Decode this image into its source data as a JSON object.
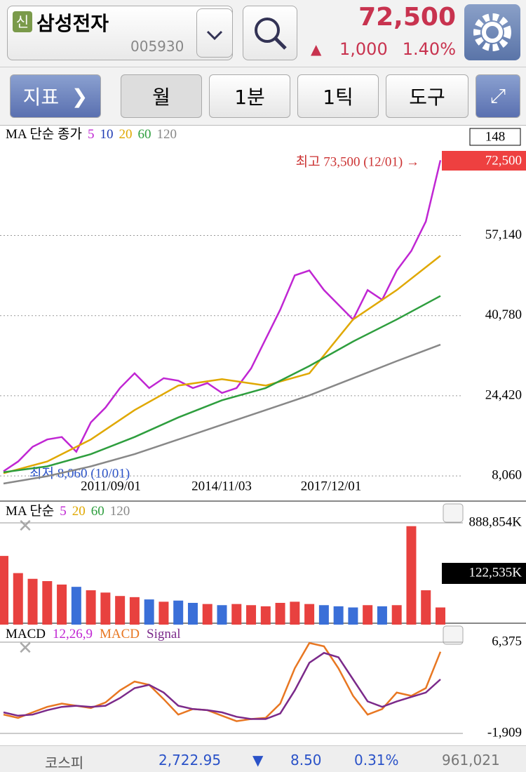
{
  "header": {
    "badge": "신",
    "name": "삼성전자",
    "code": "005930",
    "price": "72,500",
    "change_arrow": "▲",
    "change": "1,000",
    "change_pct": "1.40%"
  },
  "toolbar": {
    "indicator": "지표",
    "period": "월",
    "minute": "1분",
    "tick": "1틱",
    "tools": "도구"
  },
  "chart_data": [
    {
      "type": "line",
      "legend_title": "MA 단순 종가",
      "legend_periods": [
        "5",
        "10",
        "20",
        "60",
        "120"
      ],
      "legend_colors": [
        "#c026d3",
        "#1f3bb3",
        "#e0a800",
        "#2e9e3e",
        "#888888"
      ],
      "date_labels": [
        "2011/09/01",
        "2014/11/03",
        "2017/12/01"
      ],
      "top_label": "148",
      "current_price": "72,500",
      "high_label": "최고 73,500 (12/01) →",
      "low_label": "최저 8,060 (10/01)",
      "ylim": [
        4060,
        79140
      ],
      "yticks": [
        {
          "value": 8060,
          "label": "8,060"
        },
        {
          "value": 24420,
          "label": "24,420"
        },
        {
          "value": 40780,
          "label": "40,780"
        },
        {
          "value": 57140,
          "label": "57,140"
        }
      ],
      "grid": true,
      "series": [
        {
          "color": "#c026d3",
          "values": [
            9000,
            11000,
            14000,
            15500,
            16000,
            13000,
            19000,
            22000,
            26000,
            29000,
            26000,
            28000,
            27500,
            26000,
            27000,
            25000,
            26000,
            30000,
            36000,
            42000,
            49000,
            50000,
            46000,
            43000,
            40000,
            46000,
            44000,
            50000,
            54000,
            60000,
            72500
          ]
        },
        {
          "color": "#e0a800",
          "values": [
            8600,
            11000,
            15500,
            21500,
            26500,
            27800,
            26500,
            29000,
            40000,
            46000,
            53000
          ]
        },
        {
          "color": "#2e9e3e",
          "values": [
            8800,
            10000,
            12500,
            16000,
            20000,
            23500,
            26000,
            30500,
            35500,
            40000,
            44800
          ]
        },
        {
          "color": "#888888",
          "values": [
            6500,
            8000,
            10000,
            12500,
            15500,
            18500,
            21500,
            24500,
            28000,
            31500,
            34850
          ]
        }
      ]
    },
    {
      "type": "bar",
      "legend_title": "MA 단순",
      "legend_periods": [
        "5",
        "20",
        "60",
        "120"
      ],
      "legend_colors": [
        "#c026d3",
        "#e0a800",
        "#2e9e3e",
        "#888888"
      ],
      "current_label": "122,535K",
      "up_color": "#e8413f",
      "down_color": "#3a6fd8",
      "ylim": [
        0,
        1054364
      ],
      "yticks": [
        {
          "value": 888854,
          "label": "888,854K"
        }
      ],
      "values": [
        600000,
        450000,
        400000,
        380000,
        350000,
        330000,
        300000,
        280000,
        250000,
        240000,
        220000,
        200000,
        210000,
        190000,
        180000,
        170000,
        180000,
        170000,
        160000,
        190000,
        200000,
        180000,
        170000,
        160000,
        150000,
        170000,
        160000,
        170000,
        860000,
        300000,
        150000
      ]
    },
    {
      "type": "line",
      "legend_title": "MACD",
      "params": "12,26,9",
      "legend_names": [
        "MACD",
        "Signal"
      ],
      "legend_colors": [
        "#c026d3",
        "#e87722",
        "#7b2a8a"
      ],
      "ylim": [
        -2992,
        7968
      ],
      "yticks": [
        {
          "value": 6375,
          "label": "6,375"
        },
        {
          "value": -1909,
          "label": "-1,909"
        }
      ],
      "series": [
        {
          "color": "#e87722",
          "values": [
            -200,
            -500,
            0,
            500,
            800,
            600,
            400,
            900,
            2000,
            2800,
            2500,
            1200,
            -200,
            300,
            200,
            -300,
            -800,
            -600,
            -500,
            800,
            4000,
            6300,
            6000,
            4000,
            1500,
            -200,
            300,
            1800,
            1500,
            2200,
            5500
          ]
        },
        {
          "color": "#7b2a8a",
          "values": [
            0,
            -300,
            -200,
            200,
            500,
            600,
            500,
            600,
            1300,
            2200,
            2500,
            1800,
            600,
            300,
            200,
            0,
            -400,
            -600,
            -600,
            -100,
            2000,
            4500,
            5400,
            5000,
            3000,
            1000,
            500,
            1000,
            1400,
            1800,
            3000
          ]
        }
      ]
    }
  ],
  "market": {
    "index_name": "코스피",
    "index_value": "2,722.95",
    "arrow": "▼",
    "change": "8.50",
    "change_pct": "0.31%",
    "volume": "961,021"
  }
}
